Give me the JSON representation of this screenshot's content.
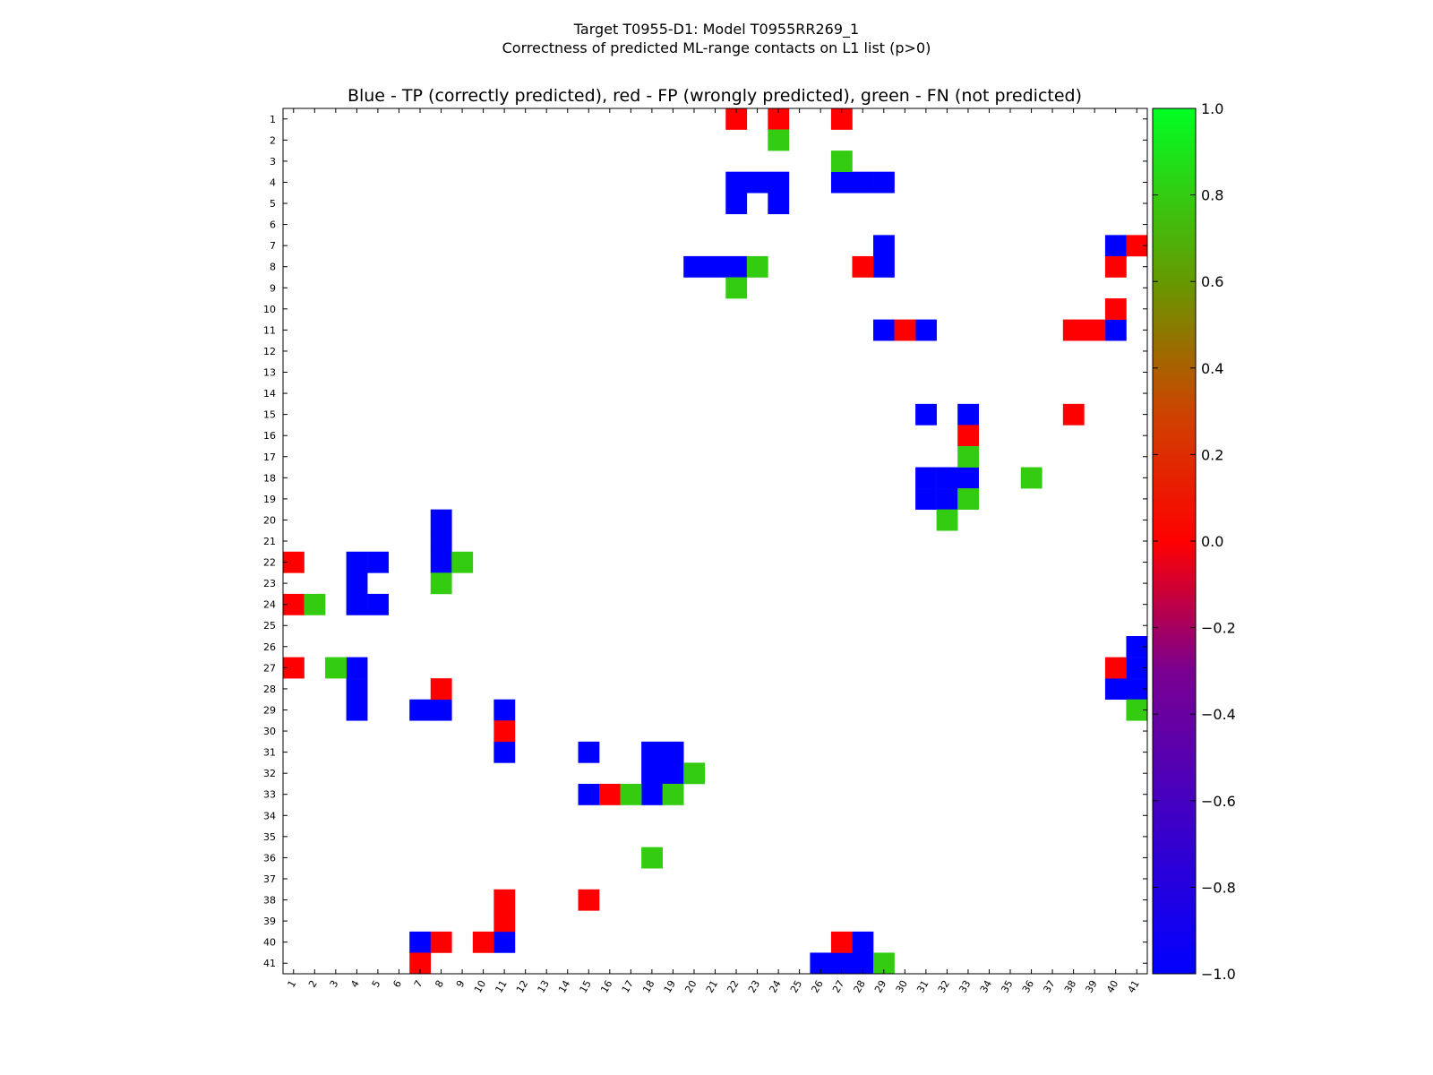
{
  "chart_data": {
    "type": "heatmap",
    "suptitle_line1": "Target T0955-D1: Model T0955RR269_1",
    "suptitle_line2": "Correctness of predicted ML-range contacts on L1 list (p>0)",
    "title": "Blue - TP (correctly predicted), red - FP (wrongly predicted), green - FN (not predicted)",
    "n_residues": 41,
    "x_tick_labels": [
      "1",
      "2",
      "3",
      "4",
      "5",
      "6",
      "7",
      "8",
      "9",
      "10",
      "11",
      "12",
      "13",
      "14",
      "15",
      "16",
      "17",
      "18",
      "19",
      "20",
      "21",
      "22",
      "23",
      "24",
      "25",
      "26",
      "27",
      "28",
      "29",
      "30",
      "31",
      "32",
      "33",
      "34",
      "35",
      "36",
      "37",
      "38",
      "39",
      "40",
      "41"
    ],
    "y_tick_labels": [
      "1",
      "2",
      "3",
      "4",
      "5",
      "6",
      "7",
      "8",
      "9",
      "10",
      "11",
      "12",
      "13",
      "14",
      "15",
      "16",
      "17",
      "18",
      "19",
      "20",
      "21",
      "22",
      "23",
      "24",
      "25",
      "26",
      "27",
      "28",
      "29",
      "30",
      "31",
      "32",
      "33",
      "34",
      "35",
      "36",
      "37",
      "38",
      "39",
      "40",
      "41"
    ],
    "colorbar": {
      "min": -1.0,
      "max": 1.0,
      "ticks": [
        "1.0",
        "0.8",
        "0.6",
        "0.4",
        "0.2",
        "0.0",
        "−0.2",
        "−0.4",
        "−0.6",
        "−0.8",
        "−1.0"
      ],
      "tick_values": [
        1.0,
        0.8,
        0.6,
        0.4,
        0.2,
        0.0,
        -0.2,
        -0.4,
        -0.6,
        -0.8,
        -1.0
      ]
    },
    "legend": {
      "tp_value": -1,
      "fp_value": 0,
      "fn_value": 0.8
    },
    "cells_tp": [
      [
        4,
        22
      ],
      [
        4,
        23
      ],
      [
        4,
        24
      ],
      [
        4,
        27
      ],
      [
        4,
        28
      ],
      [
        4,
        29
      ],
      [
        5,
        22
      ],
      [
        5,
        24
      ],
      [
        7,
        29
      ],
      [
        7,
        40
      ],
      [
        8,
        20
      ],
      [
        8,
        21
      ],
      [
        8,
        22
      ],
      [
        8,
        29
      ],
      [
        11,
        29
      ],
      [
        11,
        31
      ],
      [
        11,
        40
      ],
      [
        15,
        31
      ],
      [
        15,
        33
      ],
      [
        18,
        31
      ],
      [
        18,
        32
      ],
      [
        18,
        33
      ],
      [
        19,
        31
      ],
      [
        19,
        32
      ],
      [
        20,
        8
      ],
      [
        21,
        8
      ],
      [
        22,
        4
      ],
      [
        22,
        5
      ],
      [
        22,
        8
      ],
      [
        23,
        4
      ],
      [
        24,
        4
      ],
      [
        24,
        5
      ],
      [
        26,
        41
      ],
      [
        27,
        4
      ],
      [
        27,
        41
      ],
      [
        28,
        4
      ],
      [
        28,
        40
      ],
      [
        28,
        41
      ],
      [
        29,
        4
      ],
      [
        29,
        7
      ],
      [
        29,
        8
      ],
      [
        29,
        11
      ],
      [
        31,
        11
      ],
      [
        31,
        15
      ],
      [
        31,
        18
      ],
      [
        31,
        19
      ],
      [
        32,
        18
      ],
      [
        32,
        19
      ],
      [
        33,
        15
      ],
      [
        33,
        18
      ],
      [
        40,
        7
      ],
      [
        40,
        11
      ],
      [
        40,
        28
      ],
      [
        41,
        26
      ],
      [
        41,
        27
      ],
      [
        41,
        28
      ]
    ],
    "cells_fp": [
      [
        1,
        22
      ],
      [
        1,
        24
      ],
      [
        1,
        27
      ],
      [
        7,
        41
      ],
      [
        8,
        28
      ],
      [
        8,
        40
      ],
      [
        10,
        40
      ],
      [
        11,
        30
      ],
      [
        11,
        38
      ],
      [
        11,
        39
      ],
      [
        15,
        38
      ],
      [
        16,
        33
      ],
      [
        22,
        1
      ],
      [
        24,
        1
      ],
      [
        27,
        1
      ],
      [
        27,
        40
      ],
      [
        28,
        8
      ],
      [
        30,
        11
      ],
      [
        33,
        16
      ],
      [
        38,
        11
      ],
      [
        38,
        15
      ],
      [
        39,
        11
      ],
      [
        40,
        8
      ],
      [
        40,
        10
      ],
      [
        40,
        27
      ],
      [
        41,
        7
      ]
    ],
    "cells_fn": [
      [
        2,
        24
      ],
      [
        3,
        27
      ],
      [
        8,
        23
      ],
      [
        9,
        22
      ],
      [
        17,
        33
      ],
      [
        18,
        36
      ],
      [
        19,
        33
      ],
      [
        20,
        32
      ],
      [
        22,
        9
      ],
      [
        23,
        8
      ],
      [
        24,
        2
      ],
      [
        27,
        3
      ],
      [
        29,
        41
      ],
      [
        32,
        20
      ],
      [
        33,
        17
      ],
      [
        33,
        19
      ],
      [
        36,
        18
      ],
      [
        41,
        29
      ]
    ],
    "colors": {
      "tp": "#0000ff",
      "fp": "#ff0000",
      "fn": "#33cc11",
      "frame": "#000000"
    }
  }
}
